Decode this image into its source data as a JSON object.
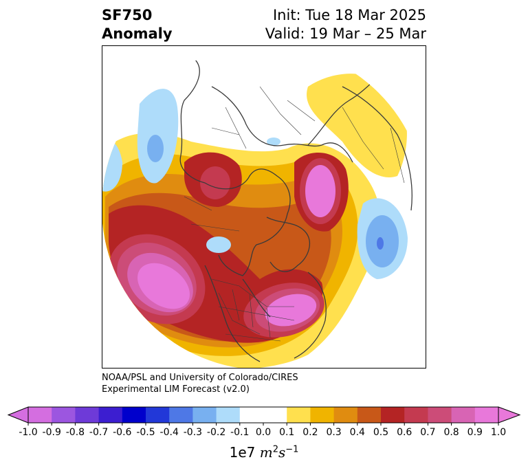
{
  "title": {
    "line1": "SF750",
    "line2": "Anomaly",
    "init": "Init: Tue 18 Mar 2025",
    "valid": "Valid: 19 Mar – 25 Mar"
  },
  "credit": {
    "line1": "NOAA/PSL and University of Colorado/CIRES",
    "line2": "Experimental LIM Forecast (v2.0)"
  },
  "colorbar": {
    "ticks": [
      "-1.0",
      "-0.9",
      "-0.8",
      "-0.7",
      "-0.6",
      "-0.5",
      "-0.4",
      "-0.3",
      "-0.2",
      "-0.1",
      "0.0",
      "0.1",
      "0.2",
      "0.3",
      "0.4",
      "0.5",
      "0.6",
      "0.7",
      "0.8",
      "0.9",
      "1.0"
    ],
    "colors": [
      "#d46ee0",
      "#9c56e0",
      "#6e3ad8",
      "#3c1ed0",
      "#0000cc",
      "#2238d8",
      "#4e78e6",
      "#78b0f0",
      "#aedcfa",
      "#ffffff",
      "#ffffff",
      "#ffe04e",
      "#f0b400",
      "#e08c10",
      "#c85818",
      "#b42424",
      "#c43a50",
      "#cc4c78",
      "#d864b4",
      "#e878da"
    ],
    "unit_base": "1e7 ",
    "unit_m": "m",
    "unit_m_exp": "2",
    "unit_s": "s",
    "unit_s_exp": "−1"
  },
  "map": {
    "projection": "north polar stereographic",
    "colors": {
      "yellow": "#ffe04e",
      "gold": "#f0b400",
      "orange": "#e08c10",
      "rust": "#c85818",
      "red": "#b42424",
      "crimson": "#c43a50",
      "rose": "#cc4c78",
      "pink": "#d864b4",
      "magenta": "#e878da",
      "lightblue": "#aedcfa",
      "blue": "#78b0f0",
      "midblue": "#4e78e6",
      "coast": "#3a3a3a"
    }
  }
}
